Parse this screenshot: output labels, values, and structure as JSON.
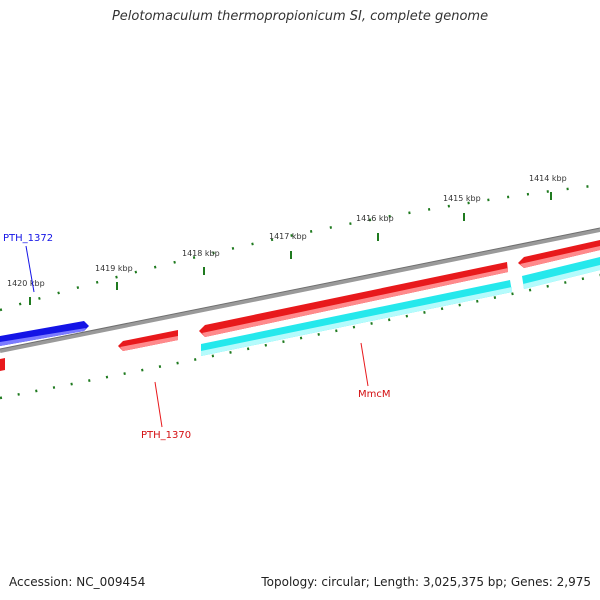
{
  "title": "Pelotomaculum thermopropionicum SI, complete genome",
  "footer": {
    "accession": "Accession: NC_009454",
    "summary": "Topology: circular; Length: 3,025,375 bp; Genes: 2,975"
  },
  "scale_labels": [
    "1420 kbp",
    "1419 kbp",
    "1418 kbp",
    "1417 kbp",
    "1416 kbp",
    "1415 kbp",
    "1414 kbp"
  ],
  "gene_labels": {
    "pth1372": "PTH_1372",
    "pth1370": "PTH_1370",
    "mmcm": "MmcM"
  },
  "colors": {
    "forward_strand": "#e8191c",
    "reverse_strand": "#1414e6",
    "cds": "#25e8ec",
    "backbone": "#808080",
    "ticks": "#1f7a1f"
  }
}
